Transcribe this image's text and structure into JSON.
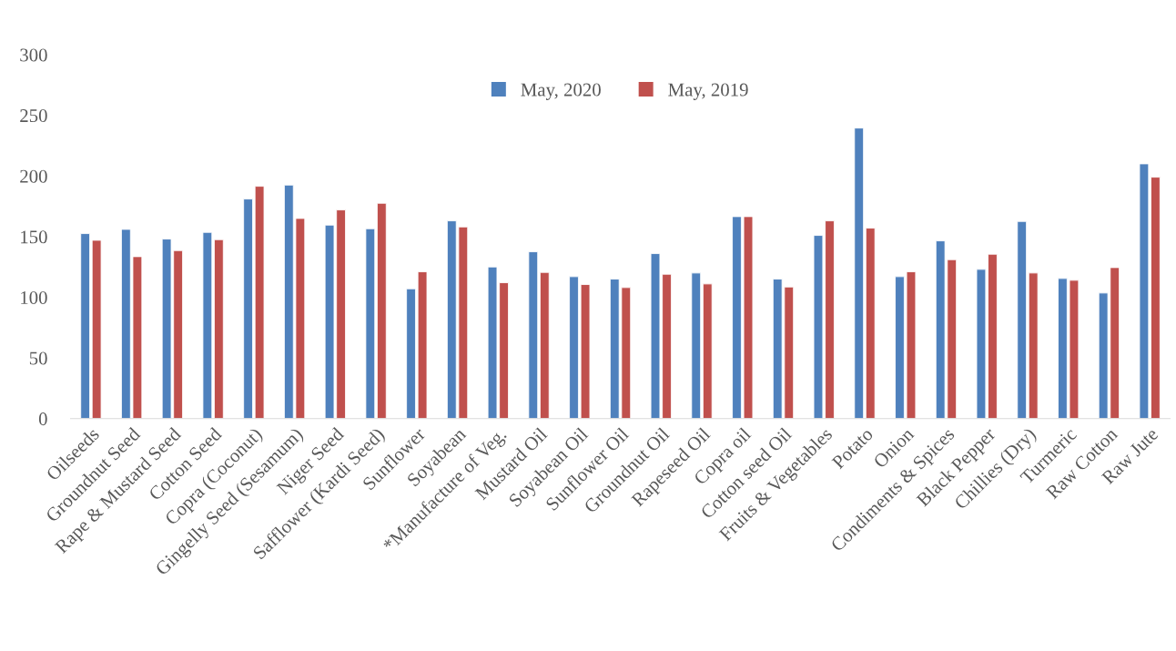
{
  "chart_data": {
    "type": "bar",
    "categories": [
      "Oilseeds",
      "Groundnut Seed",
      "Rape & Mustard Seed",
      "Cotton Seed",
      "Copra (Coconut)",
      "Gingelly Seed (Sesamum)",
      "Niger Seed",
      "Safflower (Kardi Seed)",
      "Sunflower",
      "Soyabean",
      "*Manufacture of Veg.",
      "Mustard Oil",
      "Soyabean Oil",
      "Sunflower Oil",
      "Groundnut Oil",
      "Rapeseed Oil",
      "Copra oil",
      "Cotton seed Oil",
      "Fruits & Vegetables",
      "Potato",
      "Onion",
      "Condiments & Spices",
      "Black Pepper",
      "Chillies (Dry)",
      "Turmeric",
      "Raw Cotton",
      "Raw Jute"
    ],
    "series": [
      {
        "name": "May, 2020",
        "color": "#4f81bd",
        "values": [
          152.5,
          156,
          148,
          153.5,
          181,
          192.5,
          159.5,
          156.5,
          107,
          163,
          125,
          137.5,
          117,
          115,
          136,
          120,
          166.5,
          115,
          151,
          239.5,
          117,
          146.5,
          123,
          162.5,
          115.5,
          103.5,
          210
        ]
      },
      {
        "name": "May, 2019",
        "color": "#c0504d",
        "values": [
          147,
          133.5,
          138.5,
          147.5,
          191.5,
          165,
          172,
          177.5,
          121,
          158,
          112,
          120.5,
          110.5,
          108,
          119,
          111,
          166.5,
          108.5,
          163,
          157,
          121,
          131,
          135.5,
          120,
          114,
          124.5,
          199
        ]
      }
    ],
    "ylim": [
      0,
      300
    ],
    "yticks": [
      0,
      50,
      100,
      150,
      200,
      250,
      300
    ],
    "grid": false,
    "legend": "top"
  }
}
